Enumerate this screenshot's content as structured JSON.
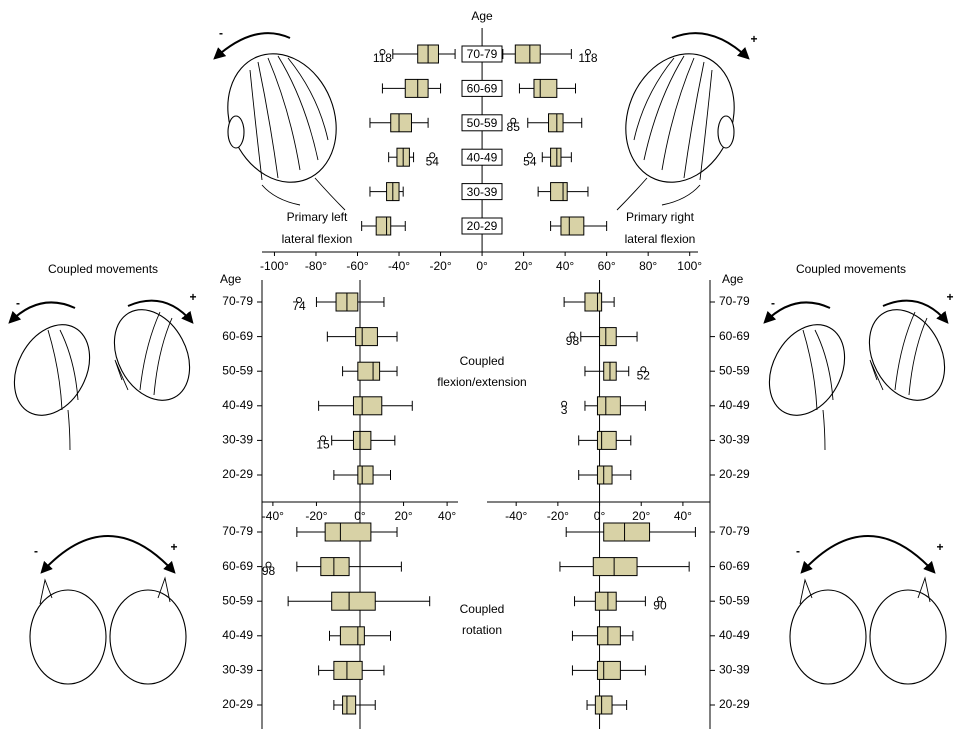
{
  "chart_data": [
    {
      "type": "box",
      "y_label": "Age",
      "titles": [
        [
          "Primary left",
          "lateral flexion"
        ],
        [
          "Primary right",
          "lateral flexion"
        ]
      ],
      "categories": [
        "70-79",
        "60-69",
        "50-59",
        "40-49",
        "30-39",
        "20-29"
      ],
      "xlim": [
        -106,
        104
      ],
      "xticks": [
        {
          "value": -100,
          "label": "-100°"
        },
        {
          "value": -80,
          "label": "-80°"
        },
        {
          "value": -60,
          "label": "-60°"
        },
        {
          "value": -40,
          "label": "-40°"
        },
        {
          "value": -20,
          "label": "-20°"
        },
        {
          "value": 0,
          "label": "0°"
        },
        {
          "value": 20,
          "label": "20°"
        },
        {
          "value": 40,
          "label": "40°"
        },
        {
          "value": 60,
          "label": "60°"
        },
        {
          "value": 80,
          "label": "80°"
        },
        {
          "value": 100,
          "label": "100°"
        }
      ],
      "series": [
        {
          "color": "#d8d2a6",
          "boxes": [
            {
              "low": -43,
              "q1": -31,
              "median": -26,
              "q3": -21,
              "high": -13,
              "outliers": [
                {
                  "value": -48,
                  "label": "118"
                }
              ]
            },
            {
              "low": -48,
              "q1": -37,
              "median": -31,
              "q3": -26,
              "high": -20
            },
            {
              "low": -54,
              "q1": -44,
              "median": -40,
              "q3": -34,
              "high": -26
            },
            {
              "low": -45,
              "q1": -41,
              "median": -38,
              "q3": -35,
              "high": -33,
              "outliers": [
                {
                  "value": -24,
                  "label": "54"
                }
              ]
            },
            {
              "low": -54,
              "q1": -46,
              "median": -43,
              "q3": -40,
              "high": -38
            },
            {
              "low": -58,
              "q1": -51,
              "median": -46,
              "q3": -44,
              "high": -37
            }
          ]
        },
        {
          "color": "#d8d2a6",
          "boxes": [
            {
              "low": 10,
              "q1": 16,
              "median": 23,
              "q3": 28,
              "high": 43,
              "outliers": [
                {
                  "value": 51,
                  "label": "118"
                }
              ]
            },
            {
              "low": 18,
              "q1": 25,
              "median": 28,
              "q3": 36,
              "high": 45
            },
            {
              "low": 22,
              "q1": 32,
              "median": 36,
              "q3": 39,
              "high": 48,
              "outliers": [
                {
                  "value": 15,
                  "label": "85"
                }
              ]
            },
            {
              "low": 29,
              "q1": 33,
              "median": 36,
              "q3": 38,
              "high": 43,
              "outliers": [
                {
                  "value": 23,
                  "label": "54"
                }
              ]
            },
            {
              "low": 27,
              "q1": 33,
              "median": 39,
              "q3": 41,
              "high": 51
            },
            {
              "low": 33,
              "q1": 38,
              "median": 42,
              "q3": 49,
              "high": 60
            }
          ]
        }
      ]
    },
    {
      "type": "box",
      "y_label": "Age",
      "title": [
        "Coupled",
        "flexion/extension"
      ],
      "categories": [
        "70-79",
        "60-69",
        "50-59",
        "40-49",
        "30-39",
        "20-29"
      ],
      "xlim": [
        -45,
        45
      ],
      "xticks": [
        {
          "value": -40,
          "label": "-40°"
        },
        {
          "value": -20,
          "label": "-20°"
        },
        {
          "value": 0,
          "label": "0°"
        },
        {
          "value": 20,
          "label": "20°"
        },
        {
          "value": 40,
          "label": "40°"
        }
      ],
      "series": [
        {
          "color": "#d8d2a6",
          "boxes": [
            {
              "low": -20,
              "q1": -11,
              "median": -6,
              "q3": -1,
              "high": 11,
              "outliers": [
                {
                  "value": -28,
                  "label": "74"
                }
              ]
            },
            {
              "low": -15,
              "q1": -2,
              "median": 1,
              "q3": 8,
              "high": 17
            },
            {
              "low": -8,
              "q1": -1,
              "median": 6,
              "q3": 9,
              "high": 17
            },
            {
              "low": -19,
              "q1": -3,
              "median": 1,
              "q3": 10,
              "high": 24
            },
            {
              "low": -13,
              "q1": -3,
              "median": 0,
              "q3": 5,
              "high": 16,
              "outliers": [
                {
                  "value": -17,
                  "label": "15"
                }
              ]
            },
            {
              "low": -12,
              "q1": -1,
              "median": 1,
              "q3": 6,
              "high": 14
            }
          ]
        }
      ]
    },
    {
      "type": "box",
      "y_label": "Age",
      "categories": [
        "70-79",
        "60-69",
        "50-59",
        "40-49",
        "30-39",
        "20-29"
      ],
      "xlim": [
        -54,
        53
      ],
      "xticks": [
        {
          "value": -40,
          "label": "-40°"
        },
        {
          "value": -20,
          "label": "-20°"
        },
        {
          "value": 0,
          "label": "0°"
        },
        {
          "value": 20,
          "label": "20°"
        },
        {
          "value": 40,
          "label": "40°"
        }
      ],
      "series": [
        {
          "color": "#d8d2a6",
          "boxes": [
            {
              "low": -17,
              "q1": -7,
              "median": -1,
              "q3": 1,
              "high": 7
            },
            {
              "low": -9,
              "q1": 0,
              "median": 3,
              "q3": 8,
              "high": 18,
              "outliers": [
                {
                  "value": -13,
                  "label": "98"
                }
              ]
            },
            {
              "low": -7,
              "q1": 2,
              "median": 5,
              "q3": 8,
              "high": 14,
              "outliers": [
                {
                  "value": 21,
                  "label": "52"
                }
              ]
            },
            {
              "low": -7,
              "q1": -1,
              "median": 3,
              "q3": 10,
              "high": 22,
              "outliers": [
                {
                  "value": -17,
                  "label": "3"
                }
              ]
            },
            {
              "low": -10,
              "q1": -1,
              "median": 1,
              "q3": 8,
              "high": 15
            },
            {
              "low": -10,
              "q1": -1,
              "median": 2,
              "q3": 6,
              "high": 15
            }
          ]
        }
      ]
    },
    {
      "type": "box",
      "title": [
        "Coupled",
        "rotation"
      ],
      "categories": [
        "70-79",
        "60-69",
        "50-59",
        "40-49",
        "30-39",
        "20-29"
      ],
      "xlim": [
        -45,
        45
      ],
      "series": [
        {
          "color": "#d8d2a6",
          "boxes": [
            {
              "low": -29,
              "q1": -16,
              "median": -9,
              "q3": 5,
              "high": 17
            },
            {
              "low": -29,
              "q1": -18,
              "median": -12,
              "q3": -5,
              "high": 19,
              "outliers": [
                {
                  "value": -42,
                  "label": "98"
                }
              ]
            },
            {
              "low": -33,
              "q1": -13,
              "median": -5,
              "q3": 7,
              "high": 32
            },
            {
              "low": -14,
              "q1": -9,
              "median": -1,
              "q3": 2,
              "high": 14
            },
            {
              "low": -19,
              "q1": -12,
              "median": -6,
              "q3": 1,
              "high": 11
            },
            {
              "low": -12,
              "q1": -8,
              "median": -6,
              "q3": -2,
              "high": 7
            }
          ]
        }
      ]
    },
    {
      "type": "box",
      "categories": [
        "70-79",
        "60-69",
        "50-59",
        "40-49",
        "30-39",
        "20-29"
      ],
      "xlim": [
        -54,
        53
      ],
      "series": [
        {
          "color": "#d8d2a6",
          "boxes": [
            {
              "low": -16,
              "q1": 2,
              "median": 12,
              "q3": 24,
              "high": 46
            },
            {
              "low": -19,
              "q1": -3,
              "median": 7,
              "q3": 18,
              "high": 43
            },
            {
              "low": -12,
              "q1": -2,
              "median": 4,
              "q3": 8,
              "high": 22,
              "outliers": [
                {
                  "value": 29,
                  "label": "90"
                }
              ]
            },
            {
              "low": -13,
              "q1": -1,
              "median": 4,
              "q3": 10,
              "high": 16
            },
            {
              "low": -13,
              "q1": -1,
              "median": 2,
              "q3": 10,
              "high": 22
            },
            {
              "low": -6,
              "q1": -2,
              "median": 1,
              "q3": 6,
              "high": 13
            }
          ]
        }
      ]
    }
  ],
  "annotations": {
    "coupled_movements": [
      "Coupled movements",
      "Coupled movements"
    ],
    "signs": [
      "-",
      "+",
      "-",
      "+",
      "-",
      "+",
      "-",
      "+",
      "-",
      "+"
    ]
  }
}
